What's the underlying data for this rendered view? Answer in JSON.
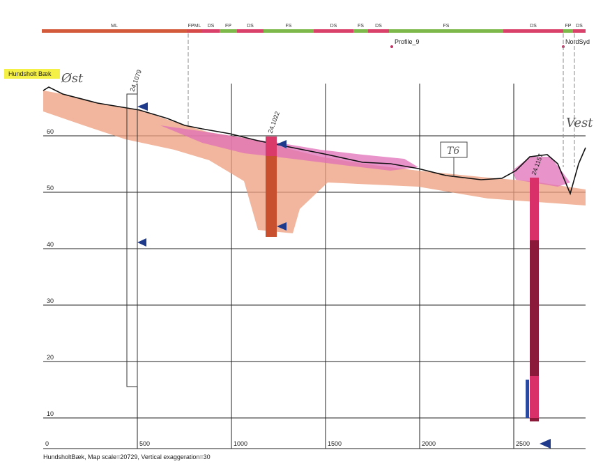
{
  "profile": {
    "name_tag": "Hundsholt Bæk",
    "caption": "HundsholtBæk, Map scale=20729, Vertical exaggeration=30",
    "handwritten_left": "Øst",
    "handwritten_right": "Vest",
    "handwritten_box": "T6",
    "crossing_labels": [
      "Profile_9",
      "NordSyd"
    ]
  },
  "top_bar": {
    "segments": [
      "ML",
      "FPML",
      "DS",
      "FP",
      "DS",
      "FS",
      "DS",
      "FS",
      "DS",
      "FS",
      "DS",
      "FP",
      "DS"
    ]
  },
  "boreholes": [
    "24.1079",
    "24.1022",
    "24.1157"
  ],
  "axes": {
    "y_ticks": [
      60,
      50,
      40,
      30,
      20,
      10
    ],
    "x_ticks": [
      0,
      500,
      1000,
      1500,
      2000,
      2500
    ]
  }
}
